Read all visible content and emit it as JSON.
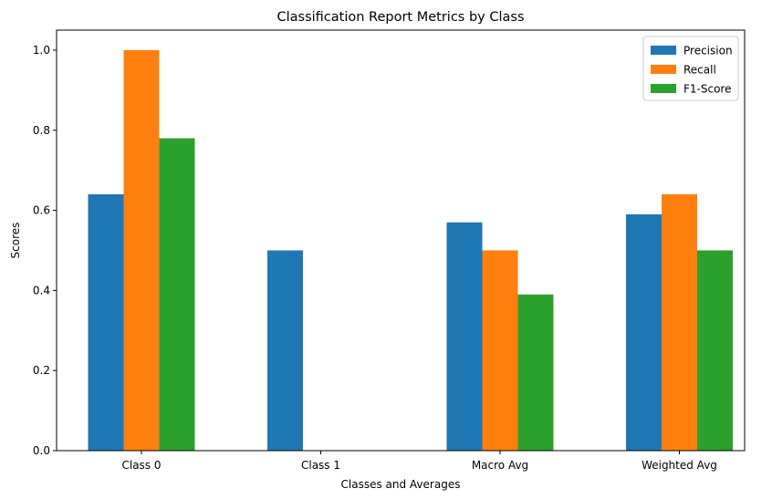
{
  "chart_data": {
    "type": "bar",
    "title": "Classification Report Metrics by Class",
    "xlabel": "Classes and Averages",
    "ylabel": "Scores",
    "categories": [
      "Class 0",
      "Class 1",
      "Macro Avg",
      "Weighted Avg"
    ],
    "series": [
      {
        "name": "Precision",
        "color": "#1f77b4",
        "values": [
          0.64,
          0.5,
          0.57,
          0.59
        ]
      },
      {
        "name": "Recall",
        "color": "#ff7f0e",
        "values": [
          1.0,
          0.0,
          0.5,
          0.64
        ]
      },
      {
        "name": "F1-Score",
        "color": "#2ca02c",
        "values": [
          0.78,
          0.0,
          0.39,
          0.5
        ]
      }
    ],
    "ylim": [
      0,
      1.05
    ],
    "yticks": [
      "0.0",
      "0.2",
      "0.4",
      "0.6",
      "0.8",
      "1.0"
    ],
    "grid": false,
    "legend_position": "top-right"
  }
}
